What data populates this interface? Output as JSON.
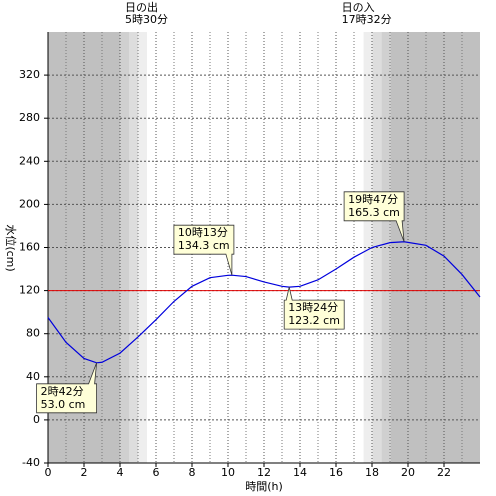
{
  "chart_data": {
    "type": "line",
    "x_label": "時間(h)",
    "y_label": "水位(cm)",
    "xlim": [
      0,
      24
    ],
    "xticks": [
      0,
      2,
      4,
      6,
      8,
      10,
      12,
      14,
      16,
      18,
      20,
      22
    ],
    "ylim": [
      -40,
      360
    ],
    "yticks": [
      -40,
      0,
      40,
      80,
      120,
      160,
      200,
      240,
      280,
      320
    ],
    "grid": true,
    "reference_line": {
      "value": 120,
      "color": "#e00000"
    },
    "series": [
      {
        "color": "#0000dd",
        "x": [
          0,
          1,
          2,
          2.7,
          3,
          4,
          5,
          6,
          7,
          8,
          9,
          10,
          10.2167,
          11,
          12,
          13,
          13.4,
          14,
          15,
          16,
          17,
          18,
          19,
          19.7833,
          21,
          22,
          23,
          24
        ],
        "values": [
          95,
          72,
          57,
          53,
          53.5,
          62,
          77,
          93,
          110,
          124,
          132,
          134.2,
          134.3,
          133,
          128,
          124,
          123.2,
          124,
          130,
          140,
          151,
          160,
          164.5,
          165.3,
          162,
          152,
          135,
          114
        ]
      }
    ],
    "sun_events": [
      {
        "label": "日の出",
        "time": "5時30分",
        "x": 5.5
      },
      {
        "label": "日の入",
        "time": "17時32分",
        "x": 17.5333
      }
    ],
    "annotations": [
      {
        "time": "2時42分",
        "height": "53.0 cm",
        "x": 2.7,
        "y": 53.0
      },
      {
        "time": "10時13分",
        "height": "134.3 cm",
        "x": 10.2167,
        "y": 134.3
      },
      {
        "time": "13時24分",
        "height": "123.2 cm",
        "x": 13.4,
        "y": 123.2
      },
      {
        "time": "19時47分",
        "height": "165.3 cm",
        "x": 19.7833,
        "y": 165.3
      }
    ]
  }
}
